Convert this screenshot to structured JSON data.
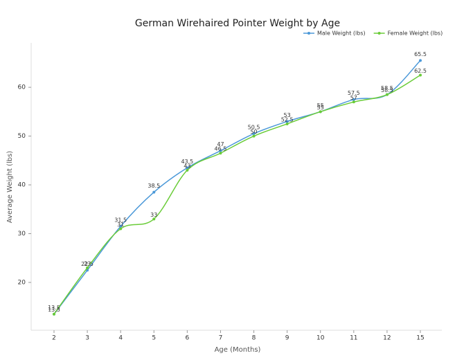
{
  "chart_data": {
    "type": "line",
    "title": "German Wirehaired Pointer Weight by Age",
    "x_label": "Age (Months)",
    "y_label": "Average Weight (lbs)",
    "categories": [
      "2",
      "3",
      "4",
      "5",
      "6",
      "7",
      "8",
      "9",
      "10",
      "11",
      "12",
      "15"
    ],
    "series": [
      {
        "name": "Male Weight (lbs)",
        "color": "#4a98d8",
        "values": [
          13.5,
          22.5,
          31.5,
          38.5,
          43.5,
          47,
          50.5,
          53,
          55,
          57.5,
          58.5,
          65.5
        ]
      },
      {
        "name": "Female Weight (lbs)",
        "color": "#6acc38",
        "values": [
          13.5,
          23,
          31,
          33,
          43,
          46.5,
          50,
          52.5,
          55,
          57,
          58.5,
          62.5
        ]
      }
    ],
    "ylim": [
      10.2,
      69.1
    ],
    "yticks": [
      20,
      30,
      40,
      50,
      60
    ],
    "legend": "upper right"
  }
}
